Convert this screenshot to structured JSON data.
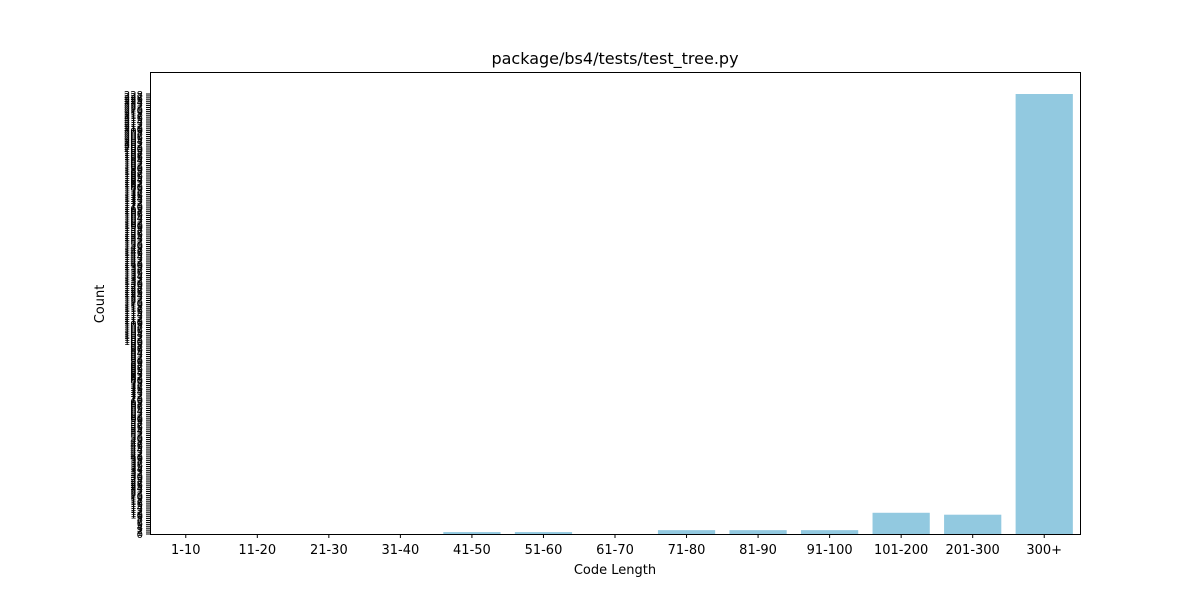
{
  "chart_data": {
    "type": "bar",
    "title": "package/bs4/tests/test_tree.py",
    "xlabel": "Code Length",
    "ylabel": "Count",
    "categories": [
      "1-10",
      "11-20",
      "21-30",
      "31-40",
      "41-50",
      "51-60",
      "61-70",
      "71-80",
      "81-90",
      "91-100",
      "101-200",
      "201-300",
      "300+"
    ],
    "values": [
      0,
      0,
      0,
      0,
      1,
      1,
      0,
      2,
      2,
      2,
      11,
      10,
      228
    ],
    "ylim": [
      0,
      228
    ],
    "bar_color": "#92c9e0",
    "grid": false,
    "legend": "none"
  }
}
